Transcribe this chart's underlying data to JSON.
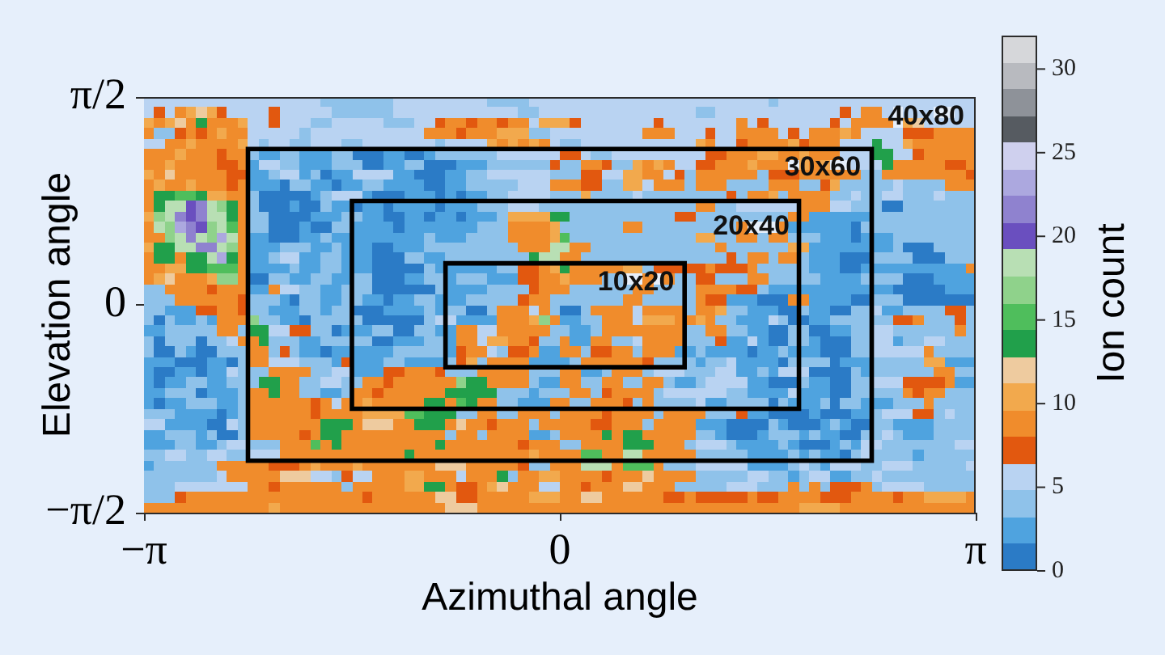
{
  "chart_data": {
    "type": "heatmap",
    "xlabel": "Azimuthal angle",
    "ylabel": "Elevation angle",
    "clabel": "Ion count",
    "xlim": [
      -3.1416,
      3.1416
    ],
    "ylim": [
      -1.5708,
      1.5708
    ],
    "xticks": [
      {
        "value": -3.1416,
        "label": "−π"
      },
      {
        "value": 0,
        "label": "0"
      },
      {
        "value": 3.1416,
        "label": "π"
      }
    ],
    "yticks": [
      {
        "value": -1.5708,
        "label": "−π/2"
      },
      {
        "value": 0,
        "label": "0"
      },
      {
        "value": 1.5708,
        "label": "π/2"
      }
    ],
    "clim": [
      0,
      32
    ],
    "cticks": [
      0,
      5,
      10,
      15,
      20,
      25,
      30
    ],
    "cells": [
      [
        6,
        6,
        6,
        6,
        6,
        6,
        6,
        6,
        6,
        6,
        6,
        6,
        6,
        6,
        6,
        6,
        6,
        4,
        4,
        4,
        4,
        4,
        4,
        4,
        6,
        6,
        6,
        6,
        6,
        6,
        6,
        6,
        6,
        4,
        4,
        4,
        4,
        6,
        6,
        6,
        6,
        6,
        6,
        6,
        6,
        6,
        6,
        6,
        6,
        6,
        6,
        6,
        6,
        6,
        6,
        6,
        6,
        6,
        6,
        6,
        4,
        6,
        6,
        6,
        6,
        6,
        6,
        6,
        6,
        6,
        6,
        6,
        6,
        6,
        6,
        6,
        6,
        6,
        6,
        6
      ],
      [
        6,
        7,
        6,
        9,
        10,
        12,
        10,
        7,
        6,
        6,
        6,
        6,
        7,
        6,
        6,
        6,
        6,
        6,
        4,
        4,
        4,
        4,
        4,
        4,
        6,
        6,
        6,
        6,
        6,
        6,
        6,
        6,
        6,
        6,
        6,
        6,
        4,
        4,
        6,
        6,
        6,
        6,
        6,
        6,
        6,
        6,
        6,
        6,
        6,
        6,
        6,
        6,
        6,
        4,
        4,
        6,
        6,
        6,
        6,
        6,
        6,
        6,
        6,
        6,
        6,
        6,
        6,
        7,
        6,
        9,
        9,
        6,
        null,
        6,
        6,
        6,
        null,
        null,
        6,
        6
      ],
      [
        10,
        9,
        10,
        12,
        9,
        13,
        9,
        9,
        9,
        10,
        6,
        6,
        7,
        6,
        6,
        6,
        4,
        4,
        6,
        6,
        6,
        6,
        6,
        4,
        4,
        4,
        6,
        6,
        7,
        9,
        9,
        7,
        9,
        9,
        7,
        9,
        9,
        6,
        10,
        10,
        10,
        7,
        6,
        6,
        6,
        6,
        6,
        6,
        6,
        7,
        6,
        6,
        6,
        6,
        6,
        6,
        6,
        9,
        6,
        7,
        6,
        6,
        6,
        6,
        6,
        6,
        7,
        6,
        9,
        9,
        9,
        9,
        null,
        10,
        12,
        6,
        6,
        6,
        6,
        6
      ],
      [
        9,
        4,
        4,
        7,
        9,
        7,
        9,
        10,
        9,
        9,
        6,
        6,
        6,
        6,
        6,
        4,
        6,
        6,
        6,
        6,
        6,
        6,
        6,
        6,
        6,
        6,
        6,
        9,
        9,
        9,
        7,
        9,
        9,
        9,
        10,
        10,
        10,
        4,
        4,
        6,
        6,
        6,
        6,
        6,
        6,
        6,
        6,
        6,
        9,
        9,
        9,
        6,
        6,
        6,
        7,
        6,
        6,
        9,
        9,
        9,
        9,
        6,
        7,
        6,
        9,
        9,
        9,
        10,
        9,
        6,
        6,
        6,
        6,
        7,
        7,
        7,
        9,
        9,
        9,
        9
      ],
      [
        6,
        6,
        9,
        9,
        10,
        9,
        9,
        9,
        9,
        10,
        6,
        4,
        6,
        6,
        4,
        4,
        6,
        6,
        6,
        4,
        4,
        6,
        6,
        6,
        6,
        6,
        6,
        6,
        4,
        6,
        6,
        6,
        6,
        10,
        9,
        10,
        9,
        10,
        9,
        6,
        4,
        4,
        6,
        6,
        6,
        6,
        6,
        6,
        6,
        6,
        6,
        6,
        6,
        10,
        9,
        6,
        6,
        7,
        9,
        9,
        9,
        9,
        10,
        7,
        9,
        9,
        9,
        6,
        6,
        6,
        13,
        6,
        6,
        10,
        9,
        9,
        9,
        9,
        9,
        9
      ],
      [
        9,
        9,
        9,
        10,
        9,
        9,
        9,
        7,
        9,
        9,
        4,
        3,
        3,
        4,
        4,
        3,
        3,
        3,
        4,
        4,
        1,
        1,
        1,
        3,
        3,
        1,
        1,
        3,
        4,
        4,
        4,
        4,
        4,
        4,
        6,
        6,
        6,
        6,
        6,
        6,
        7,
        7,
        6,
        4,
        4,
        6,
        6,
        6,
        6,
        6,
        6,
        6,
        6,
        6,
        7,
        7,
        9,
        9,
        9,
        10,
        10,
        9,
        9,
        10,
        9,
        9,
        9,
        6,
        6,
        6,
        13,
        13,
        6,
        6,
        7,
        9,
        9,
        9,
        9,
        9
      ],
      [
        9,
        9,
        10,
        9,
        9,
        9,
        9,
        7,
        7,
        9,
        3,
        6,
        6,
        4,
        4,
        3,
        3,
        3,
        4,
        4,
        4,
        1,
        1,
        3,
        3,
        4,
        4,
        1,
        1,
        1,
        3,
        3,
        3,
        4,
        4,
        4,
        4,
        4,
        4,
        7,
        4,
        4,
        9,
        9,
        7,
        4,
        4,
        10,
        9,
        10,
        9,
        6,
        6,
        7,
        7,
        9,
        9,
        9,
        10,
        9,
        9,
        9,
        null,
        10,
        9,
        10,
        null,
        null,
        6,
        6,
        6,
        13,
        9,
        9,
        9,
        9,
        9,
        7,
        7,
        9
      ],
      [
        10,
        9,
        12,
        9,
        9,
        9,
        9,
        9,
        7,
        7,
        3,
        3,
        4,
        6,
        6,
        3,
        4,
        1,
        3,
        3,
        6,
        6,
        6,
        6,
        3,
        3,
        1,
        1,
        1,
        3,
        3,
        4,
        4,
        6,
        6,
        6,
        6,
        6,
        6,
        4,
        4,
        4,
        7,
        7,
        6,
        6,
        10,
        10,
        9,
        9,
        6,
        7,
        4,
        9,
        9,
        9,
        9,
        9,
        9,
        4,
        7,
        7,
        7,
        9,
        9,
        9,
        9,
        9,
        9,
        4,
        4,
        9,
        9,
        9,
        9,
        9,
        9,
        9,
        9,
        7
      ],
      [
        9,
        10,
        9,
        9,
        10,
        9,
        9,
        9,
        7,
        9,
        3,
        3,
        3,
        1,
        4,
        4,
        3,
        3,
        1,
        3,
        3,
        4,
        4,
        3,
        3,
        3,
        3,
        1,
        1,
        3,
        3,
        4,
        4,
        4,
        4,
        4,
        6,
        6,
        6,
        9,
        9,
        9,
        7,
        7,
        4,
        4,
        10,
        10,
        6,
        9,
        9,
        9,
        4,
        9,
        9,
        9,
        4,
        4,
        4,
        4,
        9,
        9,
        9,
        4,
        4,
        7,
        10,
        4,
        4,
        4,
        4,
        4,
        6,
        4,
        4,
        4,
        4,
        9,
        9,
        9
      ],
      [
        9,
        13,
        13,
        15,
        15,
        13,
        10,
        10,
        9,
        9,
        4,
        1,
        1,
        1,
        1,
        1,
        3,
        4,
        6,
        6,
        6,
        3,
        1,
        1,
        1,
        3,
        3,
        3,
        1,
        3,
        1,
        3,
        3,
        4,
        4,
        6,
        6,
        6,
        6,
        4,
        4,
        4,
        10,
        4,
        4,
        4,
        4,
        6,
        4,
        4,
        4,
        4,
        4,
        4,
        4,
        4,
        7,
        4,
        9,
        9,
        10,
        4,
        9,
        9,
        9,
        9,
        4,
        4,
        6,
        4,
        4,
        6,
        6,
        4,
        4,
        4,
        6,
        4,
        4,
        4
      ],
      [
        9,
        13,
        18,
        18,
        20,
        21,
        18,
        16,
        13,
        9,
        4,
        1,
        1,
        1,
        3,
        1,
        1,
        4,
        3,
        3,
        1,
        3,
        3,
        1,
        3,
        3,
        3,
        3,
        1,
        3,
        3,
        3,
        4,
        4,
        4,
        6,
        6,
        6,
        4,
        4,
        4,
        4,
        4,
        4,
        4,
        4,
        4,
        4,
        4,
        4,
        4,
        4,
        4,
        9,
        9,
        4,
        4,
        6,
        6,
        6,
        6,
        6,
        6,
        9,
        9,
        9,
        6,
        6,
        4,
        4,
        4,
        1,
        1,
        4,
        4,
        4,
        4,
        4,
        4,
        4
      ],
      [
        10,
        16,
        18,
        21,
        20,
        21,
        18,
        18,
        13,
        9,
        4,
        4,
        1,
        1,
        1,
        1,
        3,
        3,
        3,
        4,
        4,
        3,
        3,
        1,
        1,
        3,
        3,
        1,
        3,
        3,
        1,
        3,
        3,
        3,
        4,
        10,
        10,
        10,
        10,
        13,
        13,
        4,
        4,
        4,
        4,
        4,
        4,
        4,
        4,
        4,
        4,
        7,
        7,
        4,
        4,
        4,
        4,
        4,
        4,
        4,
        4,
        4,
        9,
        9,
        3,
        3,
        3,
        3,
        3,
        3,
        4,
        4,
        4,
        4,
        4,
        4,
        4,
        4,
        4,
        4
      ],
      [
        9,
        18,
        16,
        23,
        21,
        20,
        16,
        18,
        15,
        9,
        4,
        4,
        1,
        1,
        1,
        3,
        1,
        1,
        4,
        4,
        3,
        3,
        3,
        3,
        1,
        3,
        3,
        3,
        3,
        3,
        3,
        3,
        4,
        4,
        4,
        9,
        9,
        9,
        9,
        10,
        4,
        4,
        4,
        4,
        4,
        4,
        9,
        9,
        4,
        4,
        4,
        4,
        4,
        4,
        4,
        4,
        4,
        9,
        null,
        null,
        null,
        9,
        3,
        3,
        3,
        3,
        3,
        3,
        1,
        4,
        4,
        4,
        4,
        4,
        4,
        4,
        4,
        4,
        4,
        4
      ],
      [
        9,
        9,
        16,
        18,
        21,
        18,
        16,
        23,
        18,
        9,
        3,
        3,
        1,
        1,
        1,
        3,
        3,
        4,
        3,
        3,
        3,
        3,
        3,
        3,
        3,
        3,
        3,
        4,
        3,
        3,
        3,
        4,
        4,
        4,
        4,
        9,
        9,
        9,
        9,
        10,
        15,
        4,
        4,
        4,
        4,
        4,
        4,
        4,
        4,
        4,
        4,
        4,
        4,
        10,
        10,
        4,
        4,
        9,
        9,
        4,
        9,
        9,
        4,
        4,
        4,
        3,
        3,
        3,
        1,
        3,
        3,
        3,
        4,
        4,
        4,
        4,
        4,
        4,
        4,
        4
      ],
      [
        10,
        13,
        13,
        18,
        18,
        21,
        21,
        18,
        16,
        9,
        3,
        3,
        3,
        4,
        4,
        4,
        3,
        3,
        4,
        3,
        3,
        3,
        1,
        1,
        3,
        3,
        3,
        4,
        4,
        4,
        4,
        4,
        4,
        4,
        4,
        4,
        9,
        9,
        9,
        18,
        18,
        9,
        9,
        4,
        4,
        4,
        4,
        4,
        4,
        4,
        4,
        4,
        4,
        4,
        4,
        9,
        4,
        4,
        4,
        4,
        4,
        4,
        10,
        10,
        3,
        3,
        3,
        3,
        3,
        3,
        3,
        3,
        4,
        1,
        1,
        1,
        4,
        4,
        4,
        4
      ],
      [
        9,
        13,
        13,
        9,
        13,
        13,
        18,
        23,
        13,
        9,
        3,
        3,
        4,
        6,
        6,
        3,
        3,
        4,
        4,
        3,
        3,
        3,
        1,
        1,
        1,
        4,
        4,
        3,
        3,
        4,
        4,
        4,
        4,
        4,
        4,
        4,
        4,
        13,
        18,
        18,
        9,
        9,
        4,
        4,
        4,
        4,
        4,
        4,
        4,
        4,
        4,
        4,
        4,
        4,
        4,
        4,
        7,
        4,
        9,
        9,
        4,
        9,
        9,
        4,
        3,
        3,
        3,
        1,
        1,
        1,
        4,
        4,
        4,
        4,
        1,
        1,
        1,
        4,
        4,
        4
      ],
      [
        9,
        9,
        10,
        10,
        13,
        13,
        15,
        15,
        15,
        9,
        3,
        3,
        3,
        3,
        4,
        3,
        3,
        4,
        4,
        3,
        3,
        3,
        1,
        1,
        1,
        1,
        1,
        4,
        3,
        3,
        3,
        3,
        3,
        3,
        4,
        4,
        7,
        7,
        9,
        10,
        13,
        9,
        9,
        9,
        9,
        9,
        10,
        10,
        4,
        7,
        7,
        7,
        7,
        7,
        9,
        7,
        7,
        7,
        9,
        4,
        4,
        4,
        4,
        4,
        3,
        3,
        3,
        1,
        1,
        3,
        3,
        3,
        3,
        3,
        3,
        3,
        3,
        3,
        3,
        9
      ],
      [
        9,
        10,
        12,
        9,
        9,
        9,
        10,
        16,
        16,
        9,
        1,
        1,
        4,
        4,
        3,
        3,
        4,
        4,
        3,
        3,
        4,
        4,
        1,
        1,
        1,
        3,
        3,
        4,
        4,
        3,
        4,
        4,
        4,
        3,
        3,
        3,
        7,
        7,
        9,
        9,
        10,
        9,
        9,
        9,
        4,
        4,
        null,
        null,
        9,
        null,
        9,
        4,
        4,
        7,
        7,
        4,
        4,
        4,
        9,
        9,
        4,
        4,
        4,
        4,
        4,
        3,
        3,
        3,
        3,
        4,
        4,
        4,
        4,
        1,
        1,
        1,
        3,
        3,
        3,
        3
      ],
      [
        4,
        4,
        9,
        9,
        9,
        9,
        7,
        9,
        9,
        9,
        3,
        3,
        9,
        6,
        6,
        4,
        4,
        3,
        3,
        4,
        4,
        4,
        1,
        1,
        1,
        1,
        1,
        1,
        4,
        3,
        3,
        3,
        3,
        4,
        4,
        4,
        4,
        7,
        9,
        9,
        9,
        4,
        4,
        4,
        4,
        4,
        4,
        9,
        9,
        4,
        4,
        4,
        4,
        9,
        9,
        9,
        9,
        7,
        7,
        4,
        3,
        3,
        3,
        3,
        3,
        3,
        3,
        3,
        3,
        3,
        3,
        3,
        1,
        1,
        1,
        1,
        1,
        3,
        3,
        3
      ],
      [
        4,
        4,
        4,
        9,
        9,
        9,
        9,
        9,
        9,
        7,
        4,
        4,
        4,
        3,
        1,
        4,
        4,
        3,
        3,
        4,
        4,
        3,
        3,
        1,
        3,
        3,
        4,
        4,
        3,
        3,
        3,
        4,
        4,
        4,
        4,
        4,
        7,
        9,
        9,
        4,
        4,
        4,
        4,
        4,
        4,
        4,
        9,
        9,
        4,
        4,
        4,
        4,
        4,
        9,
        7,
        7,
        3,
        3,
        3,
        1,
        1,
        1,
        9,
        9,
        3,
        3,
        3,
        3,
        1,
        1,
        4,
        4,
        4,
        1,
        1,
        1,
        1,
        1,
        1,
        1
      ],
      [
        4,
        4,
        3,
        3,
        3,
        7,
        7,
        9,
        9,
        7,
        4,
        4,
        3,
        3,
        3,
        4,
        4,
        3,
        4,
        4,
        1,
        1,
        1,
        3,
        3,
        3,
        3,
        4,
        3,
        4,
        4,
        1,
        1,
        4,
        9,
        9,
        9,
        6,
        9,
        4,
        1,
        1,
        4,
        9,
        9,
        9,
        9,
        6,
        9,
        9,
        9,
        9,
        4,
        9,
        9,
        10,
        4,
        4,
        3,
        3,
        3,
        1,
        1,
        4,
        3,
        3,
        1,
        1,
        4,
        4,
        6,
        3,
        3,
        4,
        4,
        4,
        4,
        7,
        7,
        4
      ],
      [
        4,
        1,
        4,
        3,
        3,
        4,
        3,
        9,
        9,
        9,
        16,
        4,
        4,
        3,
        3,
        1,
        4,
        4,
        4,
        4,
        4,
        1,
        1,
        1,
        1,
        1,
        1,
        4,
        6,
        6,
        3,
        3,
        3,
        3,
        9,
        9,
        9,
        10,
        16,
        9,
        3,
        3,
        4,
        4,
        9,
        9,
        9,
        6,
        10,
        10,
        10,
        9,
        9,
        10,
        9,
        4,
        4,
        3,
        3,
        3,
        6,
        4,
        1,
        1,
        3,
        3,
        4,
        4,
        4,
        4,
        4,
        4,
        7,
        7,
        9,
        4,
        4,
        4,
        7,
        4
      ],
      [
        3,
        3,
        4,
        4,
        4,
        4,
        4,
        9,
        9,
        4,
        13,
        13,
        6,
        6,
        7,
        7,
        4,
        4,
        1,
        3,
        3,
        3,
        4,
        4,
        1,
        1,
        4,
        4,
        3,
        3,
        9,
        9,
        6,
        6,
        9,
        9,
        9,
        9,
        9,
        4,
        4,
        3,
        3,
        4,
        9,
        9,
        9,
        9,
        9,
        9,
        9,
        9,
        4,
        4,
        9,
        9,
        4,
        4,
        3,
        3,
        1,
        1,
        4,
        4,
        1,
        1,
        3,
        3,
        4,
        4,
        6,
        6,
        4,
        4,
        4,
        4,
        4,
        4,
        9,
        4
      ],
      [
        4,
        1,
        4,
        4,
        4,
        1,
        4,
        4,
        6,
        9,
        9,
        13,
        4,
        4,
        4,
        3,
        3,
        4,
        4,
        4,
        4,
        4,
        1,
        1,
        3,
        3,
        3,
        4,
        4,
        3,
        9,
        9,
        6,
        10,
        10,
        9,
        9,
        7,
        4,
        4,
        9,
        3,
        3,
        9,
        9,
        4,
        4,
        6,
        9,
        9,
        9,
        9,
        4,
        4,
        4,
        7,
        3,
        3,
        6,
        3,
        1,
        1,
        4,
        4,
        3,
        1,
        1,
        1,
        4,
        4,
        6,
        6,
        3,
        4,
        4,
        6,
        6,
        4,
        4,
        4
      ],
      [
        4,
        1,
        1,
        4,
        3,
        1,
        1,
        4,
        4,
        4,
        9,
        9,
        4,
        7,
        4,
        3,
        3,
        1,
        3,
        3,
        3,
        3,
        3,
        3,
        4,
        4,
        4,
        4,
        4,
        3,
        7,
        9,
        9,
        6,
        4,
        7,
        7,
        9,
        3,
        3,
        9,
        9,
        4,
        7,
        7,
        9,
        9,
        4,
        9,
        9,
        9,
        3,
        3,
        4,
        3,
        3,
        3,
        3,
        1,
        3,
        3,
        4,
        3,
        3,
        3,
        1,
        1,
        1,
        4,
        4,
        6,
        6,
        6,
        6,
        6,
        9,
        4,
        4,
        4,
        4
      ],
      [
        3,
        3,
        3,
        1,
        1,
        1,
        3,
        3,
        1,
        4,
        9,
        9,
        6,
        6,
        6,
        4,
        4,
        4,
        3,
        7,
        3,
        3,
        3,
        4,
        4,
        3,
        3,
        3,
        3,
        4,
        7,
        10,
        4,
        9,
        9,
        9,
        9,
        3,
        3,
        3,
        3,
        4,
        9,
        9,
        9,
        9,
        9,
        9,
        7,
        4,
        4,
        4,
        4,
        3,
        4,
        4,
        6,
        3,
        3,
        3,
        3,
        1,
        4,
        4,
        4,
        4,
        1,
        3,
        3,
        3,
        4,
        4,
        4,
        4,
        4,
        10,
        10,
        3,
        3,
        3
      ],
      [
        3,
        1,
        1,
        3,
        3,
        1,
        3,
        3,
        6,
        4,
        4,
        4,
        9,
        9,
        9,
        9,
        4,
        4,
        6,
        6,
        3,
        3,
        3,
        7,
        7,
        9,
        9,
        9,
        7,
        4,
        4,
        4,
        9,
        9,
        9,
        9,
        9,
        4,
        4,
        4,
        9,
        9,
        3,
        3,
        4,
        9,
        9,
        9,
        4,
        6,
        6,
        6,
        4,
        4,
        4,
        6,
        6,
        3,
        3,
        4,
        3,
        6,
        6,
        6,
        1,
        1,
        1,
        1,
        4,
        3,
        4,
        4,
        4,
        4,
        4,
        4,
        9,
        9,
        4,
        4
      ],
      [
        3,
        1,
        3,
        3,
        4,
        4,
        3,
        3,
        4,
        4,
        4,
        13,
        13,
        9,
        9,
        4,
        4,
        6,
        6,
        4,
        4,
        9,
        9,
        7,
        9,
        9,
        9,
        9,
        9,
        9,
        16,
        13,
        13,
        9,
        9,
        9,
        9,
        4,
        3,
        3,
        9,
        9,
        4,
        4,
        9,
        9,
        4,
        4,
        9,
        9,
        4,
        3,
        3,
        4,
        6,
        6,
        6,
        6,
        3,
        3,
        1,
        1,
        1,
        4,
        3,
        3,
        1,
        1,
        4,
        4,
        6,
        6,
        6,
        7,
        7,
        7,
        7,
        9,
        3,
        3
      ],
      [
        3,
        3,
        4,
        4,
        4,
        1,
        3,
        3,
        3,
        4,
        9,
        9,
        13,
        9,
        9,
        4,
        4,
        3,
        3,
        4,
        9,
        9,
        7,
        9,
        9,
        9,
        9,
        9,
        9,
        13,
        13,
        13,
        13,
        13,
        4,
        4,
        4,
        3,
        4,
        4,
        4,
        9,
        9,
        4,
        7,
        9,
        9,
        9,
        9,
        4,
        6,
        6,
        6,
        6,
        6,
        6,
        4,
        4,
        3,
        3,
        3,
        3,
        6,
        3,
        3,
        3,
        1,
        1,
        4,
        4,
        4,
        4,
        4,
        9,
        7,
        9,
        9,
        4,
        4,
        4
      ],
      [
        3,
        1,
        3,
        3,
        4,
        4,
        4,
        3,
        3,
        4,
        9,
        9,
        9,
        9,
        9,
        9,
        7,
        9,
        6,
        9,
        9,
        10,
        9,
        9,
        9,
        9,
        9,
        13,
        13,
        9,
        15,
        13,
        9,
        9,
        4,
        4,
        3,
        3,
        3,
        9,
        9,
        4,
        4,
        9,
        9,
        9,
        7,
        4,
        9,
        4,
        4,
        4,
        4,
        6,
        3,
        3,
        4,
        4,
        4,
        4,
        1,
        4,
        3,
        3,
        3,
        4,
        1,
        4,
        4,
        3,
        3,
        3,
        4,
        4,
        4,
        9,
        4,
        4,
        4,
        4
      ],
      [
        4,
        4,
        4,
        3,
        3,
        3,
        3,
        1,
        3,
        4,
        9,
        9,
        9,
        9,
        9,
        9,
        7,
        9,
        9,
        9,
        9,
        10,
        10,
        10,
        10,
        15,
        15,
        13,
        13,
        13,
        4,
        4,
        9,
        9,
        4,
        4,
        9,
        9,
        9,
        4,
        9,
        9,
        9,
        9,
        7,
        9,
        9,
        9,
        9,
        4,
        9,
        9,
        9,
        9,
        4,
        4,
        4,
        7,
        3,
        3,
        1,
        1,
        1,
        1,
        3,
        1,
        1,
        1,
        3,
        3,
        4,
        6,
        6,
        6,
        7,
        7,
        4,
        6,
        4,
        4
      ],
      [
        6,
        6,
        3,
        3,
        3,
        3,
        1,
        1,
        6,
        4,
        9,
        9,
        9,
        9,
        9,
        9,
        9,
        13,
        13,
        13,
        9,
        12,
        12,
        12,
        9,
        9,
        13,
        13,
        13,
        9,
        12,
        9,
        9,
        7,
        9,
        9,
        9,
        4,
        9,
        9,
        9,
        9,
        9,
        7,
        7,
        9,
        9,
        9,
        4,
        9,
        9,
        9,
        9,
        3,
        3,
        3,
        1,
        1,
        1,
        1,
        4,
        3,
        1,
        1,
        1,
        3,
        4,
        3,
        1,
        1,
        4,
        4,
        3,
        3,
        3,
        3,
        4,
        4,
        4,
        4
      ],
      [
        3,
        3,
        4,
        4,
        4,
        3,
        4,
        1,
        1,
        4,
        9,
        9,
        9,
        9,
        9,
        7,
        9,
        13,
        13,
        9,
        9,
        9,
        9,
        9,
        9,
        9,
        9,
        9,
        9,
        4,
        9,
        9,
        4,
        9,
        9,
        9,
        9,
        3,
        3,
        4,
        9,
        9,
        9,
        9,
        13,
        9,
        13,
        13,
        9,
        9,
        9,
        9,
        9,
        4,
        4,
        3,
        1,
        1,
        1,
        3,
        4,
        4,
        4,
        3,
        4,
        3,
        3,
        1,
        1,
        4,
        4,
        6,
        4,
        3,
        3,
        3,
        4,
        4,
        4,
        4
      ],
      [
        3,
        3,
        3,
        4,
        4,
        3,
        3,
        4,
        6,
        6,
        4,
        4,
        4,
        9,
        9,
        9,
        15,
        9,
        13,
        9,
        9,
        9,
        9,
        9,
        9,
        9,
        9,
        9,
        13,
        9,
        9,
        9,
        9,
        9,
        9,
        9,
        7,
        9,
        9,
        9,
        4,
        4,
        9,
        9,
        9,
        9,
        13,
        13,
        13,
        9,
        9,
        9,
        4,
        6,
        6,
        6,
        4,
        3,
        3,
        3,
        3,
        4,
        3,
        1,
        1,
        1,
        3,
        4,
        3,
        6,
        6,
        4,
        4,
        4,
        4,
        4,
        4,
        4,
        6,
        6
      ],
      [
        4,
        4,
        6,
        6,
        4,
        4,
        6,
        6,
        4,
        4,
        6,
        6,
        6,
        9,
        9,
        9,
        9,
        9,
        9,
        9,
        9,
        9,
        9,
        9,
        9,
        13,
        9,
        9,
        9,
        9,
        9,
        9,
        9,
        9,
        9,
        9,
        9,
        10,
        9,
        9,
        9,
        9,
        15,
        15,
        9,
        9,
        18,
        18,
        9,
        9,
        9,
        9,
        9,
        4,
        4,
        4,
        4,
        4,
        3,
        3,
        3,
        3,
        4,
        3,
        4,
        3,
        3,
        1,
        4,
        6,
        4,
        4,
        4,
        4,
        3,
        4,
        4,
        4,
        4,
        4
      ],
      [
        3,
        4,
        4,
        4,
        4,
        4,
        4,
        9,
        9,
        9,
        9,
        9,
        7,
        7,
        7,
        9,
        10,
        9,
        9,
        9,
        10,
        9,
        9,
        9,
        9,
        9,
        9,
        9,
        12,
        12,
        12,
        9,
        9,
        9,
        9,
        9,
        7,
        4,
        4,
        9,
        9,
        9,
        18,
        18,
        18,
        9,
        15,
        15,
        15,
        9,
        4,
        4,
        4,
        6,
        6,
        6,
        6,
        6,
        3,
        3,
        3,
        3,
        4,
        6,
        4,
        3,
        6,
        6,
        6,
        4,
        4,
        6,
        6,
        6,
        4,
        4,
        4,
        4,
        4,
        6
      ],
      [
        4,
        4,
        4,
        4,
        4,
        4,
        4,
        6,
        9,
        9,
        9,
        9,
        9,
        12,
        12,
        12,
        6,
        6,
        4,
        7,
        6,
        6,
        9,
        9,
        9,
        10,
        10,
        9,
        9,
        9,
        6,
        9,
        9,
        9,
        13,
        4,
        9,
        9,
        10,
        10,
        9,
        9,
        9,
        9,
        7,
        9,
        9,
        9,
        12,
        9,
        9,
        9,
        9,
        4,
        4,
        4,
        4,
        4,
        6,
        6,
        4,
        4,
        3,
        4,
        6,
        6,
        3,
        3,
        4,
        4,
        6,
        4,
        4,
        4,
        4,
        4,
        4,
        4,
        4,
        4
      ],
      [
        4,
        4,
        4,
        6,
        6,
        6,
        6,
        6,
        6,
        6,
        9,
        9,
        7,
        9,
        9,
        9,
        9,
        9,
        9,
        4,
        9,
        9,
        9,
        9,
        9,
        10,
        10,
        13,
        13,
        9,
        7,
        7,
        9,
        10,
        12,
        9,
        9,
        9,
        6,
        6,
        9,
        9,
        7,
        9,
        9,
        9,
        12,
        12,
        9,
        9,
        9,
        4,
        4,
        4,
        4,
        4,
        6,
        6,
        6,
        4,
        4,
        4,
        9,
        4,
        9,
        4,
        7,
        7,
        7,
        9,
        4,
        6,
        6,
        6,
        6,
        4,
        4,
        4,
        4,
        4
      ],
      [
        4,
        4,
        4,
        7,
        9,
        9,
        9,
        9,
        9,
        9,
        9,
        9,
        9,
        9,
        9,
        9,
        9,
        9,
        9,
        9,
        9,
        7,
        9,
        9,
        9,
        9,
        9,
        9,
        12,
        12,
        7,
        7,
        9,
        9,
        9,
        9,
        9,
        10,
        10,
        10,
        9,
        9,
        12,
        12,
        9,
        9,
        9,
        9,
        9,
        9,
        7,
        7,
        9,
        7,
        7,
        7,
        7,
        7,
        9,
        7,
        7,
        9,
        9,
        9,
        9,
        7,
        7,
        7,
        9,
        9,
        9,
        9,
        7,
        9,
        9,
        10,
        10,
        10,
        10,
        9
      ],
      [
        9,
        9,
        9,
        9,
        9,
        9,
        9,
        9,
        9,
        9,
        9,
        9,
        10,
        9,
        9,
        9,
        9,
        9,
        9,
        9,
        9,
        9,
        9,
        9,
        9,
        9,
        9,
        9,
        9,
        12,
        12,
        12,
        9,
        9,
        9,
        9,
        9,
        9,
        9,
        9,
        9,
        9,
        9,
        9,
        9,
        9,
        9,
        9,
        9,
        9,
        9,
        9,
        9,
        9,
        9,
        9,
        9,
        9,
        9,
        9,
        9,
        9,
        9,
        10,
        10,
        10,
        10,
        9,
        9,
        9,
        9,
        9,
        9,
        9,
        9,
        9,
        9,
        9,
        9,
        9
      ]
    ],
    "annotations": [
      "40x80",
      "30x60",
      "20x40",
      "10x20"
    ]
  }
}
